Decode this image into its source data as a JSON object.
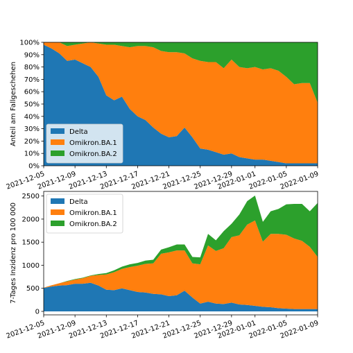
{
  "charts": [
    {
      "type": "area",
      "stacked": true,
      "ylabel": "Anteil am Fallgeschehen",
      "ylim": [
        0,
        100
      ],
      "yticks": [
        0,
        10,
        20,
        30,
        40,
        50,
        60,
        70,
        80,
        90,
        100
      ],
      "ytick_labels": [
        "0%",
        "10%",
        "20%",
        "30%",
        "40%",
        "50%",
        "60%",
        "70%",
        "80%",
        "90%",
        "100%"
      ],
      "xticks": [
        "2021-12-05",
        "2021-12-09",
        "2021-12-13",
        "2021-12-17",
        "2021-12-21",
        "2021-12-25",
        "2021-12-29",
        "2022-01-01",
        "2022-01-05",
        "2022-01-09"
      ],
      "legend_position": "lower-left",
      "grid": false,
      "x": [
        "2021-12-05",
        "2021-12-06",
        "2021-12-07",
        "2021-12-08",
        "2021-12-09",
        "2021-12-10",
        "2021-12-11",
        "2021-12-12",
        "2021-12-13",
        "2021-12-14",
        "2021-12-15",
        "2021-12-16",
        "2021-12-17",
        "2021-12-18",
        "2021-12-19",
        "2021-12-20",
        "2021-12-21",
        "2021-12-22",
        "2021-12-23",
        "2021-12-24",
        "2021-12-25",
        "2021-12-26",
        "2021-12-27",
        "2021-12-28",
        "2021-12-29",
        "2021-12-30",
        "2021-12-31",
        "2022-01-01",
        "2022-01-02",
        "2022-01-03",
        "2022-01-04",
        "2022-01-05",
        "2022-01-06",
        "2022-01-07",
        "2022-01-08",
        "2022-01-09"
      ],
      "series": [
        {
          "name": "Delta",
          "color": "#1f77b4",
          "values": [
            98,
            95,
            91,
            85,
            86,
            83,
            80,
            72,
            57,
            53,
            56,
            46,
            40,
            37,
            31,
            26,
            23,
            24,
            31,
            23,
            14,
            13,
            11,
            9,
            10,
            7,
            6,
            5,
            5,
            4,
            3,
            2,
            2,
            2,
            2,
            2
          ]
        },
        {
          "name": "Omikron.BA.1",
          "color": "#ff7f0e",
          "values": [
            2,
            5,
            9,
            12,
            12,
            16,
            20,
            27,
            41,
            45,
            41,
            50,
            57,
            60,
            65,
            67,
            69,
            68,
            60,
            64,
            71,
            71,
            73,
            70,
            76,
            73,
            73,
            75,
            73,
            75,
            74,
            70,
            64,
            65,
            65,
            49
          ]
        },
        {
          "name": "Omikron.BA.2",
          "color": "#2ca02c",
          "values": [
            0,
            0,
            0,
            3,
            2,
            1,
            0,
            1,
            2,
            2,
            3,
            4,
            3,
            3,
            4,
            7,
            8,
            8,
            9,
            13,
            15,
            16,
            16,
            21,
            14,
            20,
            21,
            20,
            22,
            21,
            23,
            28,
            34,
            33,
            33,
            49
          ]
        }
      ]
    },
    {
      "type": "area",
      "stacked": true,
      "ylabel": "7-Tages Inzidenz pro 100 000",
      "ylim": [
        -75,
        2600
      ],
      "yticks": [
        0,
        500,
        1000,
        1500,
        2000,
        2500
      ],
      "ytick_labels": [
        "0",
        "500",
        "1000",
        "1500",
        "2000",
        "2500"
      ],
      "xticks": [
        "2021-12-05",
        "2021-12-09",
        "2021-12-13",
        "2021-12-17",
        "2021-12-21",
        "2021-12-25",
        "2021-12-29",
        "2022-01-01",
        "2022-01-05",
        "2022-01-09"
      ],
      "legend_position": "upper-left",
      "grid": false,
      "x": [
        "2021-12-05",
        "2021-12-06",
        "2021-12-07",
        "2021-12-08",
        "2021-12-09",
        "2021-12-10",
        "2021-12-11",
        "2021-12-12",
        "2021-12-13",
        "2021-12-14",
        "2021-12-15",
        "2021-12-16",
        "2021-12-17",
        "2021-12-18",
        "2021-12-19",
        "2021-12-20",
        "2021-12-21",
        "2021-12-22",
        "2021-12-23",
        "2021-12-24",
        "2021-12-25",
        "2021-12-26",
        "2021-12-27",
        "2021-12-28",
        "2021-12-29",
        "2021-12-30",
        "2021-12-31",
        "2022-01-01",
        "2022-01-02",
        "2022-01-03",
        "2022-01-04",
        "2022-01-05",
        "2022-01-06",
        "2022-01-07",
        "2022-01-08",
        "2022-01-09"
      ],
      "series": [
        {
          "name": "Delta",
          "color": "#1f77b4",
          "values": [
            510,
            540,
            560,
            570,
            600,
            600,
            620,
            560,
            470,
            460,
            500,
            460,
            420,
            410,
            380,
            370,
            330,
            350,
            450,
            300,
            170,
            210,
            170,
            160,
            190,
            150,
            140,
            120,
            100,
            90,
            70,
            60,
            50,
            50,
            50,
            50
          ]
        },
        {
          "name": "Omikron.BA.1",
          "color": "#ff7f0e",
          "values": [
            5,
            25,
            50,
            80,
            90,
            120,
            150,
            230,
            330,
            390,
            420,
            500,
            570,
            620,
            660,
            880,
            950,
            970,
            870,
            740,
            850,
            1220,
            1140,
            1210,
            1420,
            1500,
            1740,
            1850,
            1410,
            1590,
            1610,
            1600,
            1530,
            1480,
            1350,
            1130
          ]
        },
        {
          "name": "Omikron.BA.2",
          "color": "#2ca02c",
          "values": [
            0,
            0,
            0,
            10,
            10,
            10,
            10,
            20,
            30,
            40,
            50,
            60,
            60,
            70,
            80,
            90,
            110,
            130,
            130,
            140,
            150,
            250,
            230,
            370,
            290,
            450,
            510,
            540,
            430,
            490,
            540,
            660,
            750,
            800,
            770,
            1170
          ]
        }
      ]
    }
  ]
}
